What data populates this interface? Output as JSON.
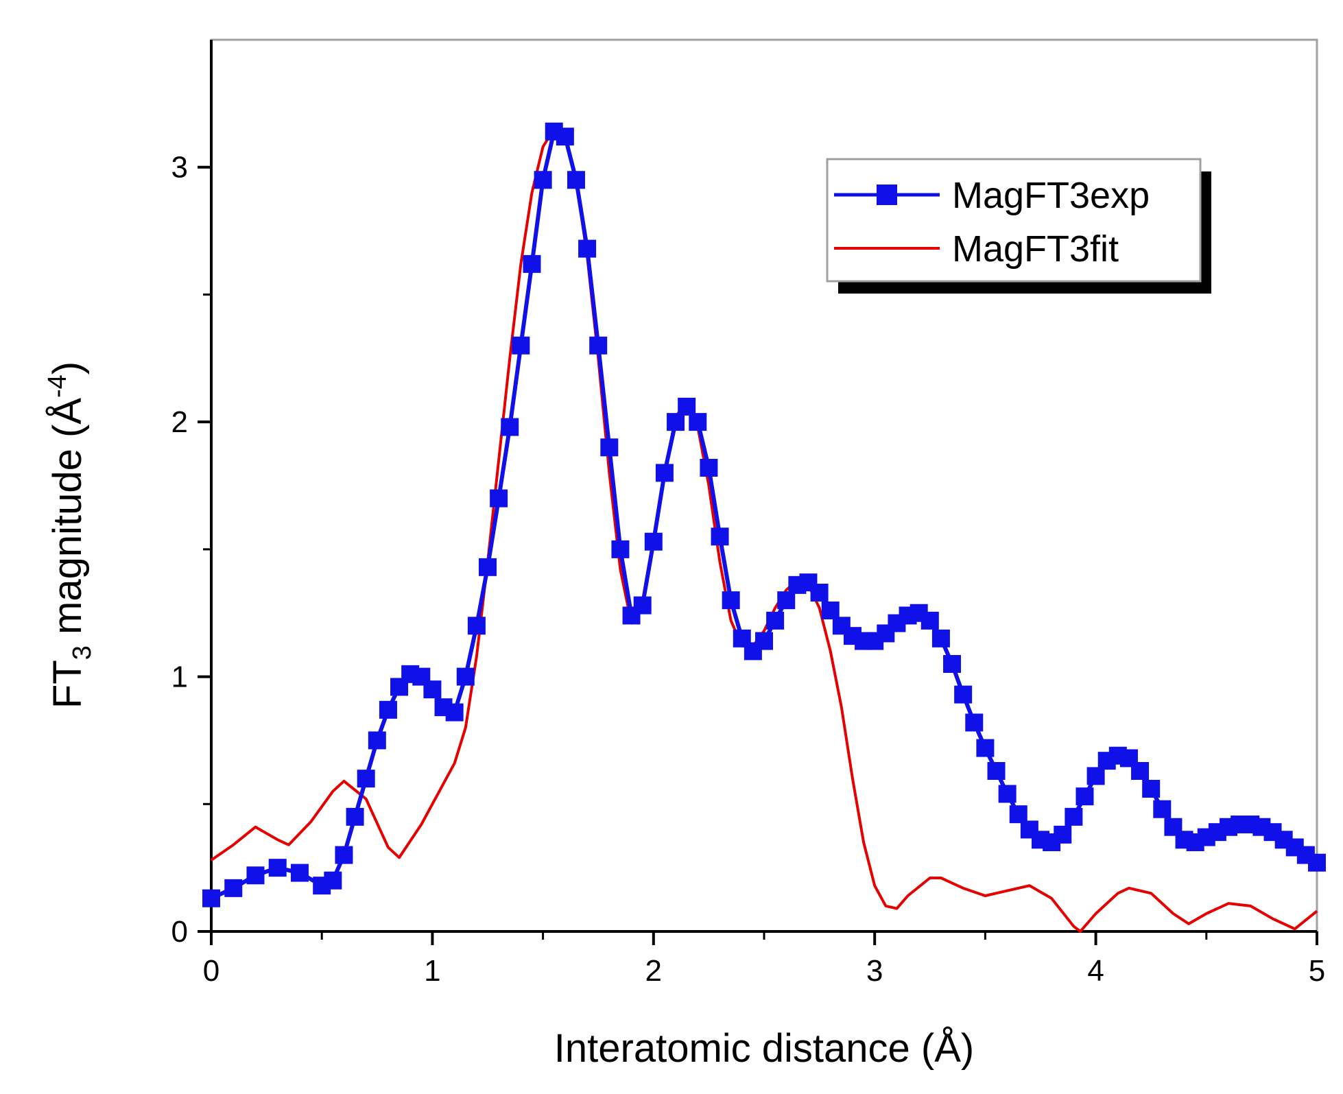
{
  "chart_data": {
    "type": "line",
    "title": "",
    "xlabel": "Interatomic distance (Å)",
    "ylabel_parts": {
      "main": "FT",
      "sub": "3",
      "rest": " magnitude (Å",
      "sup": "-4",
      "close": ")"
    },
    "xlim": [
      0,
      5
    ],
    "ylim": [
      0,
      3.5
    ],
    "xticks": [
      0,
      1,
      2,
      3,
      4,
      5
    ],
    "yticks": [
      0,
      1,
      2,
      3
    ],
    "xtick_labels": [
      "0",
      "1",
      "2",
      "3",
      "4",
      "5"
    ],
    "ytick_labels": [
      "0",
      "1",
      "2",
      "3"
    ],
    "grid": false,
    "legend_position": "top-right",
    "colors": {
      "exp": "#1010e8",
      "fit": "#e60000"
    },
    "series": [
      {
        "name": "MagFT3exp",
        "style": "line-square-markers",
        "points": [
          [
            0,
            0.13
          ],
          [
            0.1,
            0.17
          ],
          [
            0.2,
            0.22
          ],
          [
            0.3,
            0.25
          ],
          [
            0.4,
            0.23
          ],
          [
            0.5,
            0.18
          ],
          [
            0.55,
            0.2
          ],
          [
            0.6,
            0.3
          ],
          [
            0.65,
            0.45
          ],
          [
            0.7,
            0.6
          ],
          [
            0.75,
            0.75
          ],
          [
            0.8,
            0.87
          ],
          [
            0.85,
            0.96
          ],
          [
            0.9,
            1.01
          ],
          [
            0.95,
            1.0
          ],
          [
            1.0,
            0.95
          ],
          [
            1.05,
            0.88
          ],
          [
            1.1,
            0.86
          ],
          [
            1.15,
            1.0
          ],
          [
            1.2,
            1.2
          ],
          [
            1.25,
            1.43
          ],
          [
            1.3,
            1.7
          ],
          [
            1.35,
            1.98
          ],
          [
            1.4,
            2.3
          ],
          [
            1.45,
            2.62
          ],
          [
            1.5,
            2.95
          ],
          [
            1.55,
            3.14
          ],
          [
            1.6,
            3.12
          ],
          [
            1.65,
            2.95
          ],
          [
            1.7,
            2.68
          ],
          [
            1.75,
            2.3
          ],
          [
            1.8,
            1.9
          ],
          [
            1.85,
            1.5
          ],
          [
            1.9,
            1.24
          ],
          [
            1.95,
            1.28
          ],
          [
            2.0,
            1.53
          ],
          [
            2.05,
            1.8
          ],
          [
            2.1,
            2.0
          ],
          [
            2.15,
            2.06
          ],
          [
            2.2,
            2.0
          ],
          [
            2.25,
            1.82
          ],
          [
            2.3,
            1.55
          ],
          [
            2.35,
            1.3
          ],
          [
            2.4,
            1.15
          ],
          [
            2.45,
            1.1
          ],
          [
            2.5,
            1.14
          ],
          [
            2.55,
            1.22
          ],
          [
            2.6,
            1.3
          ],
          [
            2.65,
            1.36
          ],
          [
            2.7,
            1.37
          ],
          [
            2.75,
            1.33
          ],
          [
            2.8,
            1.26
          ],
          [
            2.85,
            1.2
          ],
          [
            2.9,
            1.16
          ],
          [
            2.95,
            1.14
          ],
          [
            3.0,
            1.14
          ],
          [
            3.05,
            1.17
          ],
          [
            3.1,
            1.21
          ],
          [
            3.15,
            1.24
          ],
          [
            3.2,
            1.25
          ],
          [
            3.25,
            1.22
          ],
          [
            3.3,
            1.15
          ],
          [
            3.35,
            1.05
          ],
          [
            3.4,
            0.93
          ],
          [
            3.45,
            0.82
          ],
          [
            3.5,
            0.72
          ],
          [
            3.55,
            0.63
          ],
          [
            3.6,
            0.54
          ],
          [
            3.65,
            0.46
          ],
          [
            3.7,
            0.4
          ],
          [
            3.75,
            0.36
          ],
          [
            3.8,
            0.35
          ],
          [
            3.85,
            0.38
          ],
          [
            3.9,
            0.45
          ],
          [
            3.95,
            0.53
          ],
          [
            4.0,
            0.61
          ],
          [
            4.05,
            0.67
          ],
          [
            4.1,
            0.69
          ],
          [
            4.15,
            0.68
          ],
          [
            4.2,
            0.63
          ],
          [
            4.25,
            0.56
          ],
          [
            4.3,
            0.48
          ],
          [
            4.35,
            0.41
          ],
          [
            4.4,
            0.36
          ],
          [
            4.45,
            0.35
          ],
          [
            4.5,
            0.37
          ],
          [
            4.55,
            0.39
          ],
          [
            4.6,
            0.41
          ],
          [
            4.65,
            0.42
          ],
          [
            4.7,
            0.42
          ],
          [
            4.75,
            0.41
          ],
          [
            4.8,
            0.39
          ],
          [
            4.85,
            0.36
          ],
          [
            4.9,
            0.33
          ],
          [
            4.95,
            0.3
          ],
          [
            5.0,
            0.27
          ]
        ]
      },
      {
        "name": "MagFT3fit",
        "style": "line",
        "points": [
          [
            0,
            0.28
          ],
          [
            0.1,
            0.34
          ],
          [
            0.2,
            0.41
          ],
          [
            0.3,
            0.36
          ],
          [
            0.35,
            0.34
          ],
          [
            0.45,
            0.43
          ],
          [
            0.55,
            0.55
          ],
          [
            0.6,
            0.59
          ],
          [
            0.7,
            0.52
          ],
          [
            0.8,
            0.33
          ],
          [
            0.85,
            0.29
          ],
          [
            0.95,
            0.42
          ],
          [
            1.05,
            0.58
          ],
          [
            1.1,
            0.66
          ],
          [
            1.15,
            0.8
          ],
          [
            1.2,
            1.08
          ],
          [
            1.25,
            1.45
          ],
          [
            1.3,
            1.85
          ],
          [
            1.35,
            2.25
          ],
          [
            1.4,
            2.62
          ],
          [
            1.45,
            2.9
          ],
          [
            1.5,
            3.08
          ],
          [
            1.55,
            3.15
          ],
          [
            1.6,
            3.12
          ],
          [
            1.65,
            2.95
          ],
          [
            1.7,
            2.65
          ],
          [
            1.75,
            2.25
          ],
          [
            1.8,
            1.8
          ],
          [
            1.85,
            1.42
          ],
          [
            1.9,
            1.21
          ],
          [
            1.95,
            1.28
          ],
          [
            2.0,
            1.52
          ],
          [
            2.05,
            1.8
          ],
          [
            2.1,
            2.02
          ],
          [
            2.15,
            2.08
          ],
          [
            2.2,
            1.98
          ],
          [
            2.25,
            1.75
          ],
          [
            2.3,
            1.45
          ],
          [
            2.35,
            1.22
          ],
          [
            2.4,
            1.12
          ],
          [
            2.45,
            1.12
          ],
          [
            2.5,
            1.18
          ],
          [
            2.55,
            1.27
          ],
          [
            2.6,
            1.34
          ],
          [
            2.65,
            1.38
          ],
          [
            2.7,
            1.36
          ],
          [
            2.75,
            1.27
          ],
          [
            2.8,
            1.1
          ],
          [
            2.85,
            0.88
          ],
          [
            2.9,
            0.6
          ],
          [
            2.95,
            0.35
          ],
          [
            3.0,
            0.18
          ],
          [
            3.05,
            0.1
          ],
          [
            3.1,
            0.09
          ],
          [
            3.15,
            0.14
          ],
          [
            3.25,
            0.21
          ],
          [
            3.3,
            0.21
          ],
          [
            3.4,
            0.17
          ],
          [
            3.5,
            0.14
          ],
          [
            3.6,
            0.16
          ],
          [
            3.7,
            0.18
          ],
          [
            3.8,
            0.13
          ],
          [
            3.9,
            0.02
          ],
          [
            3.93,
            0.0
          ],
          [
            4.0,
            0.07
          ],
          [
            4.1,
            0.15
          ],
          [
            4.15,
            0.17
          ],
          [
            4.25,
            0.15
          ],
          [
            4.35,
            0.07
          ],
          [
            4.42,
            0.03
          ],
          [
            4.5,
            0.07
          ],
          [
            4.6,
            0.11
          ],
          [
            4.7,
            0.1
          ],
          [
            4.8,
            0.05
          ],
          [
            4.9,
            0.01
          ],
          [
            5.0,
            0.08
          ]
        ]
      }
    ]
  }
}
